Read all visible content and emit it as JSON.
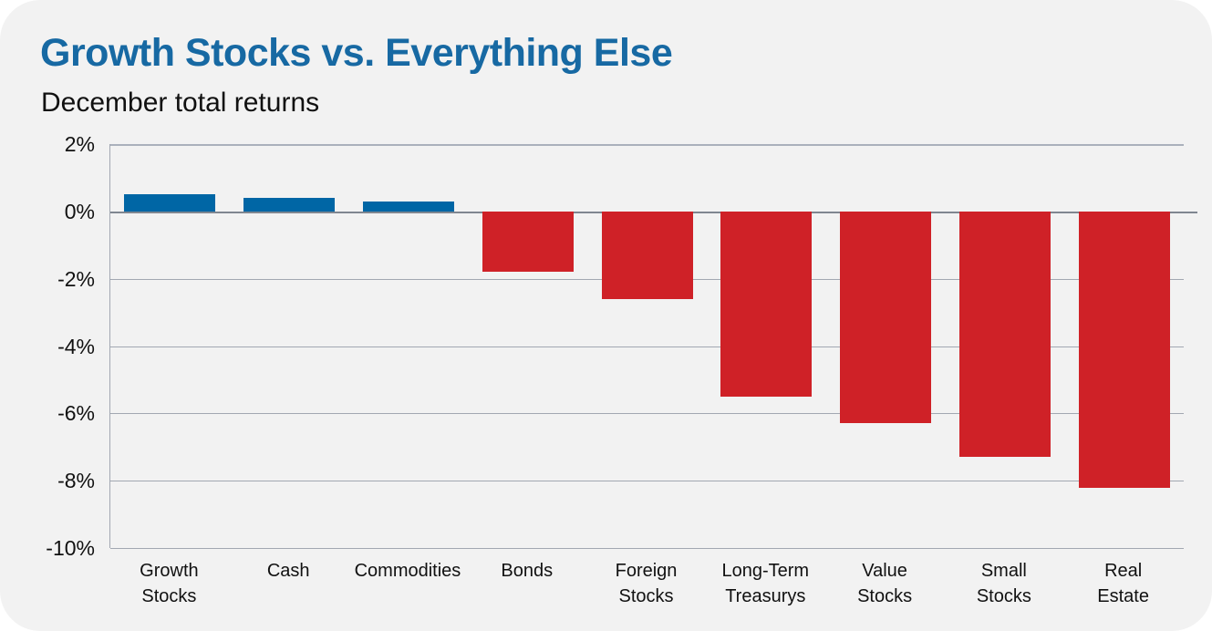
{
  "header": {
    "title": "Growth Stocks vs. Everything Else",
    "subtitle": "December total returns"
  },
  "colors": {
    "title_accent": "#1769a3",
    "positive_bar": "#0066a5",
    "negative_bar": "#cf2127"
  },
  "chart_data": {
    "type": "bar",
    "title": "Growth Stocks vs. Everything Else",
    "subtitle": "December total returns",
    "categories": [
      "Growth\nStocks",
      "Cash",
      "Commodities",
      "Bonds",
      "Foreign\nStocks",
      "Long-Term\nTreasurys",
      "Value\nStocks",
      "Small\nStocks",
      "Real\nEstate"
    ],
    "values": [
      0.5,
      0.4,
      0.3,
      -1.8,
      -2.6,
      -5.5,
      -6.3,
      -7.3,
      -8.2
    ],
    "unit": "%",
    "xlabel": "",
    "ylabel": "",
    "ylim": [
      -10,
      2
    ],
    "yticks": [
      2,
      0,
      -2,
      -4,
      -6,
      -8,
      -10
    ],
    "ytick_labels": [
      "2%",
      "0%",
      "-2%",
      "-4%",
      "-6%",
      "-8%",
      "-10%"
    ],
    "grid": "horizontal",
    "legend": "none",
    "bar_colors": {
      "positive": "#0066a5",
      "negative": "#cf2127"
    }
  }
}
